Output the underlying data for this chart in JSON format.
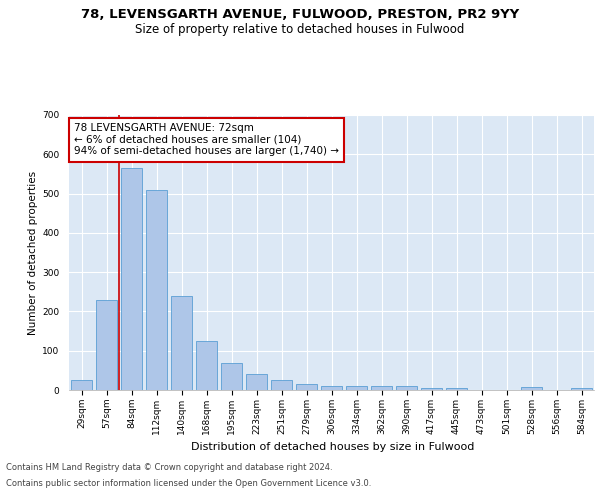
{
  "title1": "78, LEVENSGARTH AVENUE, FULWOOD, PRESTON, PR2 9YY",
  "title2": "Size of property relative to detached houses in Fulwood",
  "xlabel": "Distribution of detached houses by size in Fulwood",
  "ylabel": "Number of detached properties",
  "categories": [
    "29sqm",
    "57sqm",
    "84sqm",
    "112sqm",
    "140sqm",
    "168sqm",
    "195sqm",
    "223sqm",
    "251sqm",
    "279sqm",
    "306sqm",
    "334sqm",
    "362sqm",
    "390sqm",
    "417sqm",
    "445sqm",
    "473sqm",
    "501sqm",
    "528sqm",
    "556sqm",
    "584sqm"
  ],
  "values": [
    25,
    230,
    565,
    510,
    240,
    125,
    70,
    40,
    25,
    15,
    10,
    10,
    10,
    10,
    5,
    5,
    0,
    0,
    8,
    0,
    6
  ],
  "bar_color": "#aec6e8",
  "bar_edge_color": "#5a9fd4",
  "vline_x": 1.5,
  "vline_color": "#cc0000",
  "annotation_text": "78 LEVENSGARTH AVENUE: 72sqm\n← 6% of detached houses are smaller (104)\n94% of semi-detached houses are larger (1,740) →",
  "annotation_box_color": "#ffffff",
  "annotation_box_edge": "#cc0000",
  "ylim": [
    0,
    700
  ],
  "yticks": [
    0,
    100,
    200,
    300,
    400,
    500,
    600,
    700
  ],
  "bg_color": "#dce8f5",
  "grid_color": "#ffffff",
  "footer1": "Contains HM Land Registry data © Crown copyright and database right 2024.",
  "footer2": "Contains public sector information licensed under the Open Government Licence v3.0.",
  "title1_fontsize": 9.5,
  "title2_fontsize": 8.5,
  "xlabel_fontsize": 8,
  "ylabel_fontsize": 7.5,
  "tick_fontsize": 6.5,
  "annotation_fontsize": 7.5,
  "footer_fontsize": 6
}
